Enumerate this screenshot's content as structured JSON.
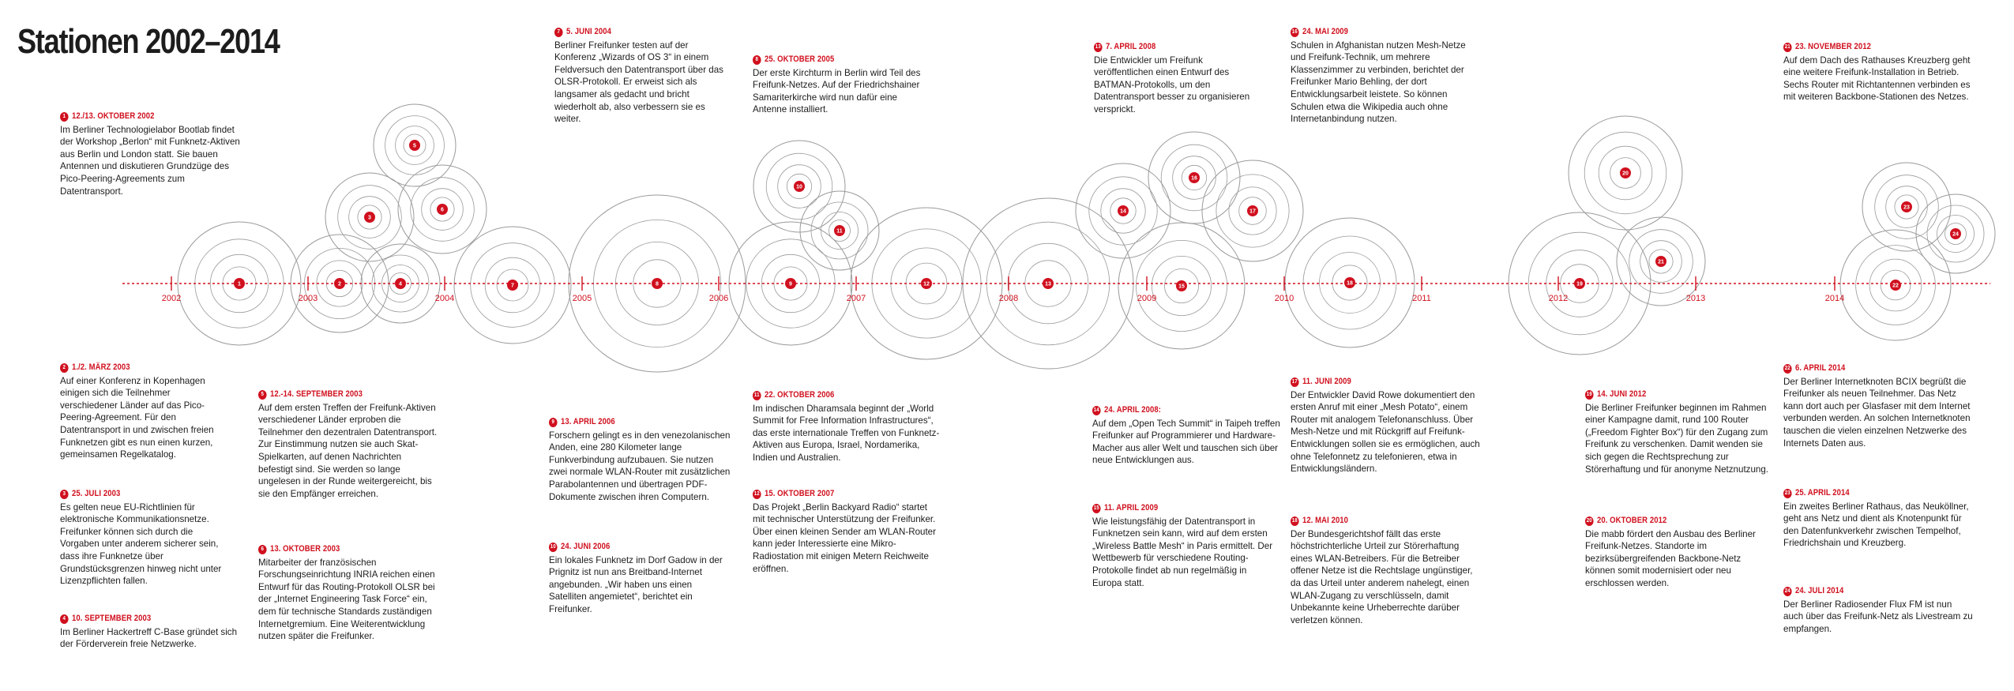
{
  "title": "Stationen 2002–2014",
  "colors": {
    "accent": "#d0101e",
    "text": "#1c1c1c",
    "ring": "#9a9a9a"
  },
  "years": [
    "2002",
    "2003",
    "2004",
    "2005",
    "2006",
    "2007",
    "2008",
    "2009",
    "2010",
    "2011",
    "2012",
    "2013",
    "2014"
  ],
  "entries": [
    {
      "num": "1",
      "date": "12./13. Oktober 2002",
      "text": "Im Berliner Technologielabor Bootlab findet der Workshop „Berlon“ mit Funknetz-Aktiven aus Berlin und London statt. Sie bauen Antennen und diskutieren Grundzüge des Pico-Peering-Agreements zum Datentransport."
    },
    {
      "num": "2",
      "date": "1./2. März 2003",
      "text": "Auf einer Konferenz in Kopenhagen einigen sich die Teilnehmer verschiedener Länder auf das Pico-Peering-Agreement. Für den Datentransport in und zwischen freien Funknetzen gibt es nun einen kurzen, gemeinsamen Regelkatalog."
    },
    {
      "num": "3",
      "date": "25. Juli 2003",
      "text": "Es gelten neue EU-Richtlinien für elektronische Kommunikationsnetze. Freifunker können sich durch die Vorgaben unter anderem sicherer sein, dass ihre Funknetze über Grundstücksgrenzen hinweg nicht unter Lizenzpflichten fallen."
    },
    {
      "num": "4",
      "date": "10. September 2003",
      "text": "Im Berliner Hackertreff C-Base gründet sich der Förderverein freie Netzwerke."
    },
    {
      "num": "5",
      "date": "12.-14. September 2003",
      "text": "Auf dem ersten Treffen der Freifunk-Aktiven verschiedener Länder erproben die Teilnehmer den dezentralen Datentransport. Zur Einstimmung nutzen sie auch Skat-Spielkarten, auf denen Nachrichten befestigt sind. Sie werden so lange ungelesen in der Runde weitergereicht, bis sie den Empfänger erreichen."
    },
    {
      "num": "6",
      "date": "13. Oktober 2003",
      "text": "Mitarbeiter der französischen Forschungseinrichtung INRIA reichen einen Entwurf für das Routing-Protokoll OLSR bei der „Internet Engineering Task Force“ ein, dem für technische Standards zuständigen Internetgremium. Eine Weiterentwicklung nutzen später die Freifunker."
    },
    {
      "num": "7",
      "date": "5. Juni 2004",
      "text": "Berliner Freifunker testen auf der Konferenz „Wizards of OS 3“ in einem Feldversuch den Datentransport über das OLSR-Protokoll. Er erweist sich als langsamer als gedacht und bricht wiederholt ab, also verbessern sie es weiter."
    },
    {
      "num": "8",
      "date": "25. Oktober 2005",
      "text": "Der erste Kirchturm in Berlin wird Teil des Freifunk-Netzes. Auf der Friedrichshainer Samariterkirche wird nun dafür eine Antenne installiert."
    },
    {
      "num": "9",
      "date": "13. April 2006",
      "text": "Forschern gelingt es in den venezolanischen Anden, eine 280 Kilometer lange Funkverbindung aufzubauen. Sie nutzen zwei normale WLAN-Router mit zusätzlichen Parabolantennen und übertragen PDF-Dokumente zwischen ihren Computern."
    },
    {
      "num": "10",
      "date": "24. Juni 2006",
      "text": "Ein lokales Funknetz im Dorf Gadow in der Prignitz ist nun ans Breitband-Internet angebunden. „Wir haben uns einen Satelliten angemietet“, berichtet ein Freifunker."
    },
    {
      "num": "11",
      "date": "22. Oktober 2006",
      "text": "Im indischen Dharamsala beginnt der „World Summit for Free Information Infrastructures“, das erste internationale Treffen von Funknetz-Aktiven aus Europa, Israel, Nordamerika, Indien und Australien."
    },
    {
      "num": "12",
      "date": "15. Oktober 2007",
      "text": "Das Projekt „Berlin Backyard Radio“ startet mit technischer Unterstützung der Freifunker. Über einen kleinen Sender am WLAN-Router kann jeder Interessierte eine Mikro-Radiostation mit einigen Metern Reichweite eröffnen."
    },
    {
      "num": "13",
      "date": "7. April 2008",
      "text": "Die Entwickler um Freifunk veröffentlichen einen Entwurf des BATMAN-Protokolls, um den Datentransport besser zu organisieren versprickt."
    },
    {
      "num": "14",
      "date": "24. April 2008:",
      "text": " Auf dem „Open Tech Summit“ in Taipeh treffen Freifunker auf Programmierer und Hardware-Macher aus aller Welt und tauschen sich über neue Entwicklungen aus."
    },
    {
      "num": "15",
      "date": "11. April 2009",
      "text": "Wie leistungsfähig der Datentransport in Funknetzen sein kann, wird auf dem ersten „Wireless Battle Mesh“ in Paris ermittelt. Der Wettbewerb für verschiedene Routing-Protokolle findet ab nun regelmäßig in Europa statt."
    },
    {
      "num": "16",
      "date": "24. Mai 2009",
      "text": "Schulen in Afghanistan nutzen Mesh-Netze und Freifunk-Technik, um mehrere Klassenzimmer zu verbinden, berichtet der Freifunker Mario Behling, der dort Entwicklungsarbeit leistete. So können Schulen etwa die Wikipedia auch ohne Internetanbindung nutzen."
    },
    {
      "num": "17",
      "date": "11. Juni 2009",
      "text": "Der Entwickler David Rowe dokumentiert den ersten Anruf mit einer „Mesh Potato“, einem Router mit analogem Telefonanschluss. Über Mesh-Netze und mit Rückgriff auf Freifunk-Entwicklungen sollen sie es ermöglichen, auch ohne Telefonnetz zu telefonieren, etwa in Entwicklungsländern."
    },
    {
      "num": "18",
      "date": "12. Mai 2010",
      "text": "Der Bundesgerichtshof fällt das erste höchstrichterliche Urteil zur Störerhaftung eines WLAN-Betreibers. Für die Betreiber offener Netze ist die Rechtslage ungünstiger, da das Urteil unter anderem nahelegt, einen WLAN-Zugang zu verschlüsseln, damit Unbekannte keine Urheberrechte darüber verletzen können."
    },
    {
      "num": "19",
      "date": "14. Juni 2012",
      "text": "Die Berliner Freifunker beginnen im Rahmen einer Kampagne damit, rund 100 Router („Freedom Fighter Box“) für den Zugang zum Freifunk zu verschenken. Damit wenden sie sich gegen die Rechtsprechung zur Störerhaftung und für anonyme Netznutzung."
    },
    {
      "num": "20",
      "date": "20. Oktober 2012",
      "text": "Die mabb fördert den Ausbau des Berliner Freifunk-Netzes. Standorte im bezirksübergreifenden Backbone-Netz können somit modernisiert oder neu erschlossen werden."
    },
    {
      "num": "21",
      "date": "23. November 2012",
      "text": "Auf dem Dach des Rathauses Kreuzberg geht eine weitere Freifunk-Installation in Betrieb. Sechs Router mit Richtantennen verbinden es mit weiteren Backbone-Stationen des Netzes."
    },
    {
      "num": "22",
      "date": "6. April 2014",
      "text": "Der Berliner Internetknoten BCIX begrüßt die Freifunker als neuen Teilnehmer. Das Netz kann dort auch per Glasfaser mit dem Internet verbunden werden. An solchen Internetknoten tauschen die vielen einzelnen Netzwerke des Internets Daten aus."
    },
    {
      "num": "23",
      "date": "25. April 2014",
      "text": "Ein zweites Berliner Rathaus, das Neuköllner, geht ans Netz und dient als Knotenpunkt für den Datenfunkverkehr zwischen Tempelhof, Friedrichshain und Kreuzberg."
    },
    {
      "num": "24",
      "date": "24. Juli 2014",
      "text": "Der Berliner Radiosender Flux FM ist nun auch über das Freifunk-Netz als Livestream zu empfangen."
    }
  ]
}
